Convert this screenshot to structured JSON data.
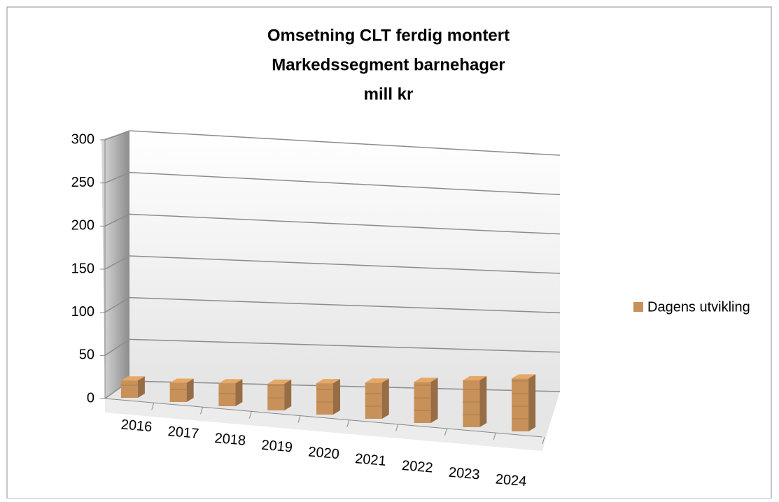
{
  "chart_data": {
    "type": "bar3d",
    "title": [
      "Omsetning CLT ferdig montert",
      "Markedssegment barnehager",
      "mill kr"
    ],
    "categories": [
      "2016",
      "2017",
      "2018",
      "2019",
      "2020",
      "2021",
      "2022",
      "2023",
      "2024"
    ],
    "series": [
      {
        "name": "Dagens utvikling",
        "color": "#c8915a",
        "values": [
          20,
          22,
          26,
          30,
          35,
          40,
          45,
          51,
          57
        ]
      }
    ],
    "ylim": [
      0,
      300
    ],
    "yticks": [
      0,
      50,
      100,
      150,
      200,
      250,
      300
    ],
    "grid": true,
    "legend": "right"
  }
}
